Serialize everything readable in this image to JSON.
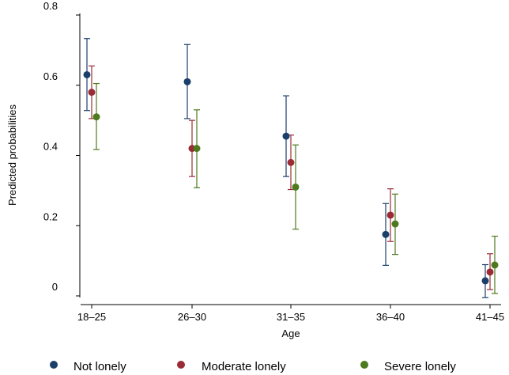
{
  "chart_data": {
    "type": "scatter",
    "title": "",
    "xlabel": "Age",
    "ylabel": "Predicted probabilities",
    "categories": [
      "18–25",
      "26–30",
      "31–35",
      "36–40",
      "41–45"
    ],
    "yticks": [
      "0",
      "0.2",
      "0.4",
      "0.6",
      "0.8"
    ],
    "ylim": [
      0,
      0.8
    ],
    "grid": false,
    "legend_position": "bottom",
    "error_bars": true,
    "series": [
      {
        "name": "Not lonely",
        "color": "#1b3f6b",
        "values": [
          0.63,
          0.61,
          0.455,
          0.175,
          0.043
        ],
        "lower": [
          0.528,
          0.505,
          0.34,
          0.087,
          -0.005
        ],
        "upper": [
          0.733,
          0.716,
          0.57,
          0.263,
          0.089
        ]
      },
      {
        "name": "Moderate lonely",
        "color": "#9b2b36",
        "values": [
          0.58,
          0.42,
          0.38,
          0.23,
          0.068
        ],
        "lower": [
          0.505,
          0.34,
          0.303,
          0.155,
          0.018
        ],
        "upper": [
          0.655,
          0.5,
          0.458,
          0.305,
          0.12
        ]
      },
      {
        "name": "Severe lonely",
        "color": "#4d7a1e",
        "values": [
          0.51,
          0.42,
          0.31,
          0.205,
          0.088
        ],
        "lower": [
          0.417,
          0.308,
          0.19,
          0.118,
          0.007
        ],
        "upper": [
          0.605,
          0.53,
          0.43,
          0.29,
          0.17
        ]
      }
    ]
  }
}
